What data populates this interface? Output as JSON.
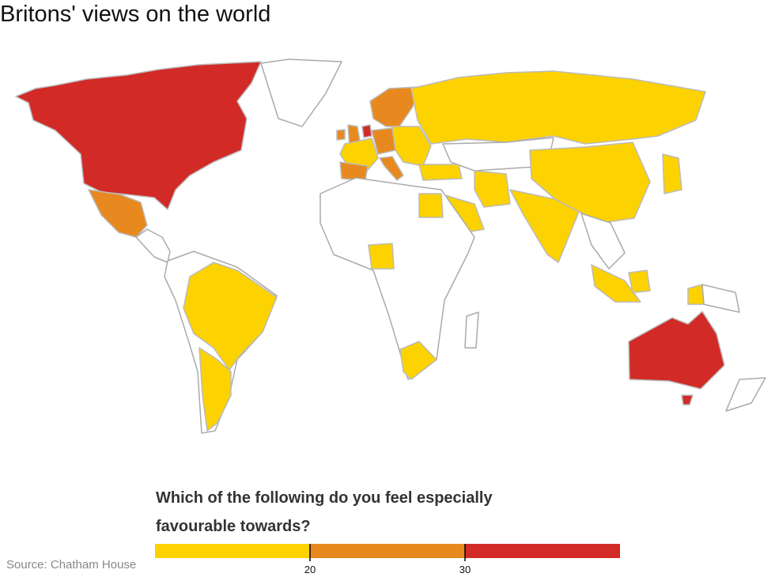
{
  "title": "Britons' views on the world",
  "legend": {
    "title": "Which of the following do you feel especially favourable towards?",
    "colors": [
      "#fcd200",
      "#e8891f",
      "#d22a27"
    ],
    "ticks": [
      20,
      30
    ]
  },
  "source": "Source: Chatham House"
}
